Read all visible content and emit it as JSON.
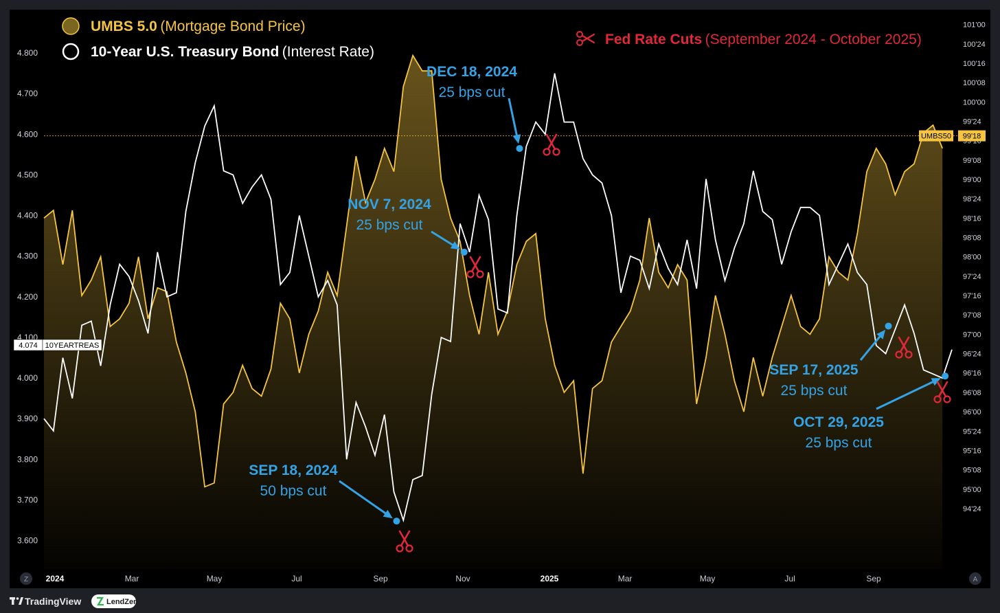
{
  "legend": {
    "umbs_name": "UMBS 5.0",
    "umbs_desc": "(Mortgage Bond Price)",
    "treasury_name": "10-Year U.S. Treasury Bond",
    "treasury_desc": "(Interest Rate)",
    "fed_title": "Fed Rate Cuts",
    "fed_range": "(September 2024 - October 2025)"
  },
  "footer": {
    "tradingview": "TradingView",
    "lendzen": "LendZen",
    "z_button": "Z",
    "a_button": "A"
  },
  "colors": {
    "background": "#000000",
    "umbs": "#f5c542",
    "treasury": "#ffffff",
    "fed_cut": "#e0283a",
    "annotation": "#33a3e6",
    "frame": "#1e2026"
  },
  "chart_data": {
    "type": "line",
    "x_tick_labels": [
      "2024",
      "Mar",
      "May",
      "Jul",
      "Sep",
      "Nov",
      "2025",
      "Mar",
      "May",
      "Jul",
      "Sep"
    ],
    "left_axis": {
      "series": "10-Year U.S. Treasury Bond",
      "ylim": [
        3.53,
        4.9
      ],
      "tick_labels": [
        "4.800",
        "4.700",
        "4.600",
        "4.500",
        "4.400",
        "4.300",
        "4.200",
        "4.100",
        "4.000",
        "3.900",
        "3.800",
        "3.700",
        "3.600"
      ]
    },
    "right_axis": {
      "series": "UMBS 5.0",
      "ylim_32nds": [
        3007,
        3237
      ],
      "tick_labels": [
        "101'00",
        "100'24",
        "100'16",
        "100'08",
        "100'00",
        "99'24",
        "99'16",
        "99'08",
        "99'00",
        "98'24",
        "98'16",
        "98'08",
        "98'00",
        "97'24",
        "97'16",
        "97'08",
        "97'00",
        "96'24",
        "96'16",
        "96'08",
        "96'00",
        "95'24",
        "95'16",
        "95'08",
        "95'00",
        "94'24"
      ]
    },
    "series": [
      {
        "name": "UMBS 5.0",
        "unit": "price (points and 32nds, as decimal)",
        "last_value_label": "99'18",
        "tag_label": "UMBS50",
        "x": [
          "2024-01-01",
          "2024-01-08",
          "2024-01-15",
          "2024-01-22",
          "2024-01-29",
          "2024-02-05",
          "2024-02-12",
          "2024-02-19",
          "2024-02-26",
          "2024-03-04",
          "2024-03-11",
          "2024-03-18",
          "2024-03-25",
          "2024-04-01",
          "2024-04-08",
          "2024-04-15",
          "2024-04-22",
          "2024-04-29",
          "2024-05-06",
          "2024-05-13",
          "2024-05-20",
          "2024-05-27",
          "2024-06-03",
          "2024-06-10",
          "2024-06-17",
          "2024-06-24",
          "2024-07-01",
          "2024-07-08",
          "2024-07-15",
          "2024-07-22",
          "2024-07-29",
          "2024-08-05",
          "2024-08-12",
          "2024-08-19",
          "2024-08-26",
          "2024-09-02",
          "2024-09-09",
          "2024-09-16",
          "2024-09-23",
          "2024-09-30",
          "2024-10-07",
          "2024-10-14",
          "2024-10-21",
          "2024-10-28",
          "2024-11-04",
          "2024-11-11",
          "2024-11-18",
          "2024-11-25",
          "2024-12-02",
          "2024-12-09",
          "2024-12-16",
          "2024-12-23",
          "2024-12-30",
          "2025-01-06",
          "2025-01-13",
          "2025-01-20",
          "2025-01-27",
          "2025-02-03",
          "2025-02-10",
          "2025-02-17",
          "2025-02-24",
          "2025-03-03",
          "2025-03-10",
          "2025-03-17",
          "2025-03-24",
          "2025-03-31",
          "2025-04-07",
          "2025-04-14",
          "2025-04-21",
          "2025-04-28",
          "2025-05-05",
          "2025-05-12",
          "2025-05-19",
          "2025-05-26",
          "2025-06-02",
          "2025-06-09",
          "2025-06-16",
          "2025-06-23",
          "2025-06-30",
          "2025-07-07",
          "2025-07-14",
          "2025-07-21",
          "2025-07-28",
          "2025-08-04",
          "2025-08-11",
          "2025-08-18",
          "2025-08-25",
          "2025-09-01",
          "2025-09-08",
          "2025-09-15",
          "2025-09-22",
          "2025-09-29",
          "2025-10-06",
          "2025-10-13",
          "2025-10-20",
          "2025-10-27",
          "2025-11-03"
        ],
        "values": [
          98.5,
          98.6,
          97.9,
          98.6,
          97.5,
          97.7,
          98.0,
          97.1,
          97.2,
          97.4,
          98.0,
          97.2,
          97.6,
          97.55,
          96.9,
          96.5,
          96.0,
          95.03,
          95.08,
          96.1,
          96.25,
          96.6,
          96.3,
          96.2,
          96.55,
          97.4,
          97.2,
          96.5,
          97.0,
          97.3,
          97.8,
          97.5,
          98.4,
          99.3,
          98.7,
          99.0,
          99.4,
          99.1,
          100.2,
          100.6,
          100.4,
          100.4,
          99.0,
          98.5,
          98.2,
          97.5,
          97.0,
          97.8,
          97.0,
          97.3,
          97.9,
          98.2,
          98.3,
          97.2,
          96.6,
          96.25,
          96.4,
          95.2,
          96.3,
          96.4,
          96.9,
          97.1,
          97.3,
          97.7,
          98.5,
          97.8,
          97.6,
          97.9,
          97.7,
          96.1,
          96.7,
          97.5,
          97.0,
          96.4,
          96.0,
          96.7,
          96.2,
          96.7,
          97.1,
          97.5,
          97.1,
          97.0,
          97.2,
          98.0,
          97.8,
          97.7,
          98.3,
          99.1,
          99.4,
          99.2,
          98.8,
          99.1,
          99.2,
          99.6,
          99.7,
          99.4,
          null
        ]
      },
      {
        "name": "10-Year U.S. Treasury Bond",
        "unit": "percent",
        "last_value_label": "4.074",
        "tag_label": "10YEARTREAS",
        "x": [
          "2024-01-01",
          "2024-01-08",
          "2024-01-15",
          "2024-01-22",
          "2024-01-29",
          "2024-02-05",
          "2024-02-12",
          "2024-02-19",
          "2024-02-26",
          "2024-03-04",
          "2024-03-11",
          "2024-03-18",
          "2024-03-25",
          "2024-04-01",
          "2024-04-08",
          "2024-04-15",
          "2024-04-22",
          "2024-04-29",
          "2024-05-06",
          "2024-05-13",
          "2024-05-20",
          "2024-05-27",
          "2024-06-03",
          "2024-06-10",
          "2024-06-17",
          "2024-06-24",
          "2024-07-01",
          "2024-07-08",
          "2024-07-15",
          "2024-07-22",
          "2024-07-29",
          "2024-08-05",
          "2024-08-12",
          "2024-08-19",
          "2024-08-26",
          "2024-09-02",
          "2024-09-09",
          "2024-09-16",
          "2024-09-23",
          "2024-09-30",
          "2024-10-07",
          "2024-10-14",
          "2024-10-21",
          "2024-10-28",
          "2024-11-04",
          "2024-11-11",
          "2024-11-18",
          "2024-11-25",
          "2024-12-02",
          "2024-12-09",
          "2024-12-16",
          "2024-12-23",
          "2024-12-30",
          "2025-01-06",
          "2025-01-13",
          "2025-01-20",
          "2025-01-27",
          "2025-02-03",
          "2025-02-10",
          "2025-02-17",
          "2025-02-24",
          "2025-03-03",
          "2025-03-10",
          "2025-03-17",
          "2025-03-24",
          "2025-03-31",
          "2025-04-07",
          "2025-04-14",
          "2025-04-21",
          "2025-04-28",
          "2025-05-05",
          "2025-05-12",
          "2025-05-19",
          "2025-05-26",
          "2025-06-02",
          "2025-06-09",
          "2025-06-16",
          "2025-06-23",
          "2025-06-30",
          "2025-07-07",
          "2025-07-14",
          "2025-07-21",
          "2025-07-28",
          "2025-08-04",
          "2025-08-11",
          "2025-08-18",
          "2025-08-25",
          "2025-09-01",
          "2025-09-08",
          "2025-09-15",
          "2025-09-22",
          "2025-09-29",
          "2025-10-06",
          "2025-10-13",
          "2025-10-20",
          "2025-10-27",
          "2025-11-03"
        ],
        "values": [
          3.9,
          3.87,
          4.05,
          3.95,
          4.13,
          4.14,
          4.03,
          4.18,
          4.28,
          4.25,
          4.19,
          4.11,
          4.31,
          4.2,
          4.21,
          4.41,
          4.53,
          4.62,
          4.67,
          4.51,
          4.5,
          4.43,
          4.47,
          4.5,
          4.44,
          4.23,
          4.26,
          4.4,
          4.3,
          4.2,
          4.24,
          4.18,
          3.8,
          3.94,
          3.88,
          3.81,
          3.91,
          3.72,
          3.65,
          3.75,
          3.76,
          3.96,
          4.1,
          4.09,
          4.38,
          4.31,
          4.45,
          4.39,
          4.17,
          4.16,
          4.4,
          4.57,
          4.63,
          4.6,
          4.75,
          4.63,
          4.63,
          4.54,
          4.5,
          4.48,
          4.4,
          4.21,
          4.3,
          4.29,
          4.22,
          4.33,
          4.27,
          4.23,
          4.34,
          4.22,
          4.49,
          4.34,
          4.24,
          4.32,
          4.38,
          4.51,
          4.41,
          4.39,
          4.28,
          4.36,
          4.42,
          4.42,
          4.4,
          4.23,
          4.28,
          4.33,
          4.26,
          4.23,
          4.08,
          4.06,
          4.12,
          4.18,
          4.11,
          4.02,
          4.01,
          4.0,
          4.07
        ]
      }
    ],
    "annotations": [
      {
        "date_label": "SEP 18, 2024",
        "cut_label": "50 bps cut",
        "x": "2024-09-18",
        "y": 3.648
      },
      {
        "date_label": "NOV 7, 2024",
        "cut_label": "25 bps cut",
        "x": "2024-11-07",
        "y": 4.31
      },
      {
        "date_label": "DEC 18, 2024",
        "cut_label": "25 bps cut",
        "x": "2024-12-18",
        "y": 4.565
      },
      {
        "date_label": "SEP 17, 2025",
        "cut_label": "25 bps cut",
        "x": "2025-09-17",
        "y": 4.128
      },
      {
        "date_label": "OCT 29, 2025",
        "cut_label": "25 bps cut",
        "x": "2025-10-29",
        "y": 4.005
      }
    ],
    "grid": false,
    "legend_position": "top-left"
  }
}
